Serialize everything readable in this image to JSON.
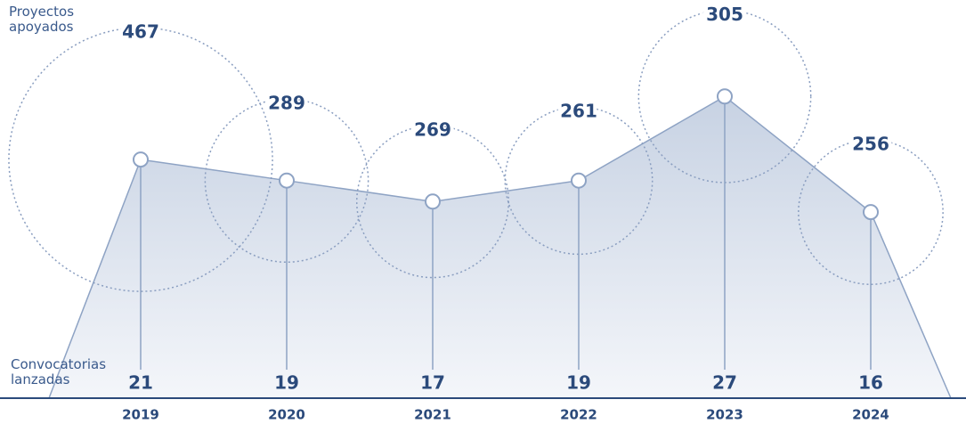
{
  "chart_data": {
    "type": "bubble-line",
    "categories": [
      "2019",
      "2020",
      "2021",
      "2022",
      "2023",
      "2024"
    ],
    "series": [
      {
        "name": "Convocatorias lanzadas",
        "color": "#8ea3c4",
        "values": [
          21,
          19,
          17,
          19,
          27,
          16
        ]
      },
      {
        "name": "Proyectos apoyados",
        "color": "#8a9ec0",
        "values": [
          467,
          289,
          269,
          261,
          305,
          256
        ]
      }
    ],
    "ylim": [
      0,
      36
    ]
  }
}
